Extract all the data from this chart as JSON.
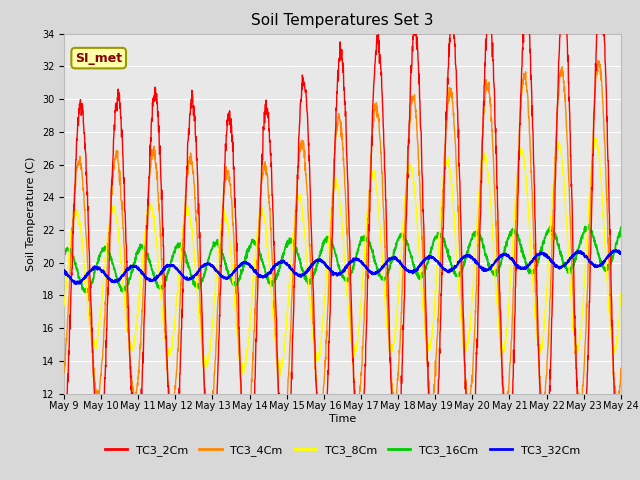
{
  "title": "Soil Temperatures Set 3",
  "xlabel": "Time",
  "ylabel": "Soil Temperature (C)",
  "xlim_start": 0,
  "xlim_end": 360,
  "ylim": [
    12,
    34
  ],
  "yticks": [
    12,
    14,
    16,
    18,
    20,
    22,
    24,
    26,
    28,
    30,
    32,
    34
  ],
  "xtick_labels": [
    "May 9",
    "May 10",
    "May 11",
    "May 12",
    "May 13",
    "May 14",
    "May 15",
    "May 16",
    "May 17",
    "May 18",
    "May 19",
    "May 20",
    "May 21",
    "May 22",
    "May 23",
    "May 24"
  ],
  "xtick_positions": [
    0,
    24,
    48,
    72,
    96,
    120,
    144,
    168,
    192,
    216,
    240,
    264,
    288,
    312,
    336,
    360
  ],
  "colors": {
    "TC3_2Cm": "#ff0000",
    "TC3_4Cm": "#ff8800",
    "TC3_8Cm": "#ffff00",
    "TC3_16Cm": "#00cc00",
    "TC3_32Cm": "#0000ff"
  },
  "legend_label": "SI_met",
  "fig_bg": "#d8d8d8",
  "ax_bg": "#e8e8e8",
  "grid_color": "#ffffff",
  "title_fontsize": 11,
  "axis_label_fontsize": 8,
  "tick_fontsize": 7,
  "legend_fontsize": 8
}
